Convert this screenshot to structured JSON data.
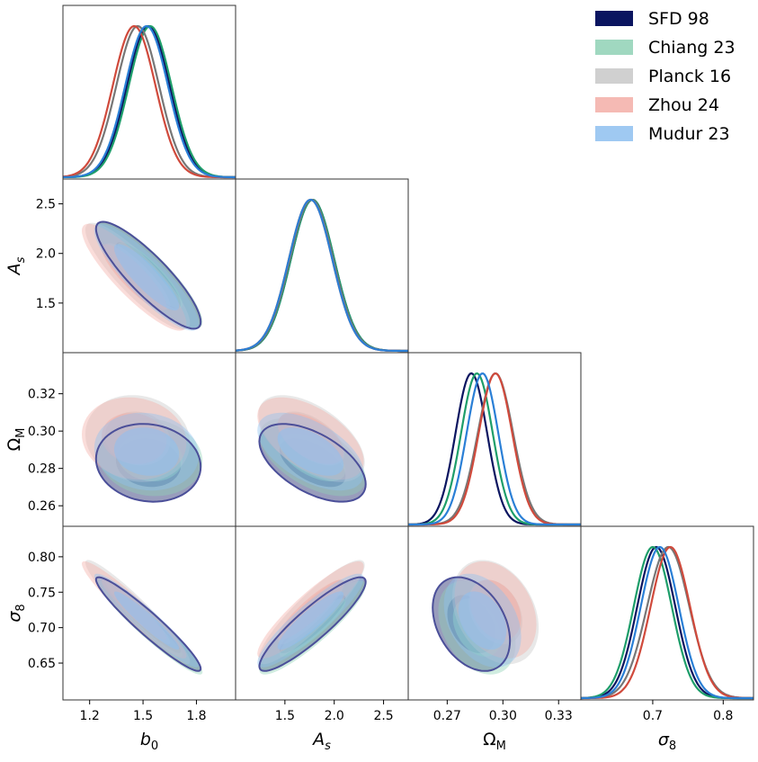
{
  "chart_data": {
    "type": "corner",
    "parameters": [
      {
        "id": "b0",
        "label": "b",
        "sub": "0",
        "range": [
          1.05,
          2.02
        ],
        "ticks": [
          1.2,
          1.5,
          1.8
        ],
        "tick_labels": [
          "1.2",
          "1.5",
          "1.8"
        ]
      },
      {
        "id": "As",
        "label": "A",
        "sub": "s",
        "range": [
          1.0,
          2.75
        ],
        "ticks": [
          1.5,
          2.0,
          2.5
        ],
        "tick_labels": [
          "1.5",
          "2.0",
          "2.5"
        ]
      },
      {
        "id": "OmegaM",
        "label": "Ω",
        "sub": "M",
        "range": [
          0.249,
          0.342
        ],
        "ticks": [
          0.26,
          0.28,
          0.3,
          0.32
        ],
        "tick_labels": [
          "0.26",
          "0.28",
          "0.30",
          "0.32"
        ],
        "x_ticks": [
          0.27,
          0.3,
          0.33
        ],
        "x_tick_labels": [
          "0.27",
          "0.30",
          "0.33"
        ]
      },
      {
        "id": "sigma8",
        "label": "σ",
        "sub": "8",
        "range": [
          0.598,
          0.843
        ],
        "ticks": [
          0.65,
          0.7,
          0.75,
          0.8
        ],
        "tick_labels": [
          "0.65",
          "0.70",
          "0.75",
          "0.80"
        ],
        "x_ticks": [
          0.7,
          0.8
        ],
        "x_tick_labels": [
          "0.7",
          "0.8"
        ]
      }
    ],
    "series": [
      {
        "name": "SFD 98",
        "fill": "#0b1560",
        "line": "#0b1560",
        "mean": [
          1.53,
          1.78,
          0.283,
          0.705
        ],
        "sigma": [
          0.12,
          0.22,
          0.0085,
          0.027
        ],
        "corr": {
          "b0-As": -0.87,
          "b0-OmegaM": -0.1,
          "b0-sigma8": -0.95,
          "As-OmegaM": -0.55,
          "As-sigma8": 0.9,
          "OmegaM-sigma8": -0.35
        }
      },
      {
        "name": "Chiang 23",
        "fill": "#8fd1b5",
        "line": "#1e9e6a",
        "mean": [
          1.54,
          1.78,
          0.286,
          0.7
        ],
        "sigma": [
          0.12,
          0.22,
          0.0085,
          0.027
        ],
        "corr": {
          "b0-As": -0.87,
          "b0-OmegaM": -0.1,
          "b0-sigma8": -0.95,
          "As-OmegaM": -0.55,
          "As-sigma8": 0.9,
          "OmegaM-sigma8": -0.35
        }
      },
      {
        "name": "Planck 16",
        "fill": "#c8c8c8",
        "line": "#777777",
        "mean": [
          1.47,
          1.77,
          0.296,
          0.722
        ],
        "sigma": [
          0.12,
          0.22,
          0.0095,
          0.03
        ],
        "corr": {
          "b0-As": -0.87,
          "b0-OmegaM": -0.1,
          "b0-sigma8": -0.95,
          "As-OmegaM": -0.55,
          "As-sigma8": 0.9,
          "OmegaM-sigma8": -0.3
        }
      },
      {
        "name": "Zhou 24",
        "fill": "#f3aea7",
        "line": "#d04a3c",
        "mean": [
          1.45,
          1.76,
          0.296,
          0.725
        ],
        "sigma": [
          0.12,
          0.22,
          0.009,
          0.028
        ],
        "corr": {
          "b0-As": -0.87,
          "b0-OmegaM": -0.1,
          "b0-sigma8": -0.95,
          "As-OmegaM": -0.55,
          "As-sigma8": 0.9,
          "OmegaM-sigma8": -0.3
        }
      },
      {
        "name": "Mudur 23",
        "fill": "#8ec0f0",
        "line": "#2a7fd6",
        "mean": [
          1.52,
          1.76,
          0.289,
          0.71
        ],
        "sigma": [
          0.12,
          0.22,
          0.0085,
          0.027
        ],
        "corr": {
          "b0-As": -0.87,
          "b0-OmegaM": -0.1,
          "b0-sigma8": -0.95,
          "As-OmegaM": -0.55,
          "As-sigma8": 0.9,
          "OmegaM-sigma8": -0.35
        }
      }
    ],
    "legend_position": "top-right",
    "contour_levels": [
      "68%",
      "95%"
    ]
  }
}
